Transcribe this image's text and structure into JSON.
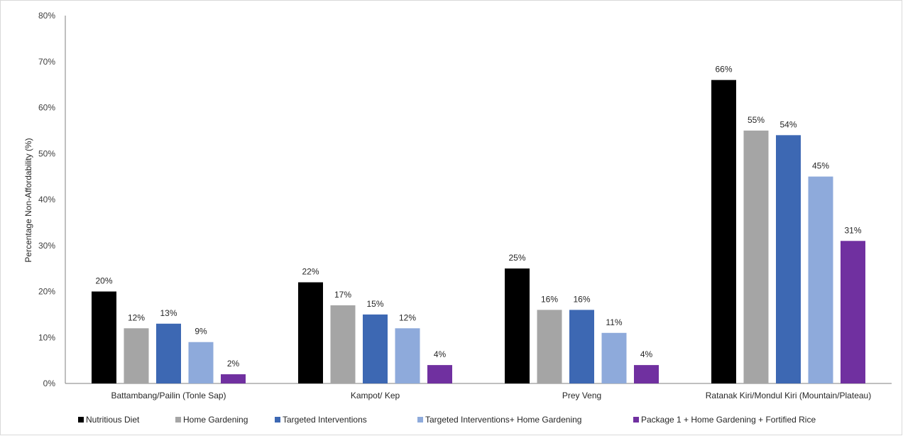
{
  "chart_data": {
    "type": "bar",
    "title": "",
    "xlabel": "",
    "ylabel": "Percentage Non-Affordability (%)",
    "ylim": [
      0,
      80
    ],
    "yticks": [
      "0%",
      "10%",
      "20%",
      "30%",
      "40%",
      "50%",
      "60%",
      "70%",
      "80%"
    ],
    "grid": false,
    "legend_position": "bottom",
    "categories": [
      "Battambang/Pailin (Tonle Sap)",
      "Kampot/ Kep",
      "Prey Veng",
      "Ratanak Kiri/Mondul Kiri (Mountain/Plateau)"
    ],
    "series": [
      {
        "name": "Nutritious Diet",
        "color": "#000000",
        "values": [
          20,
          22,
          25,
          66
        ],
        "labels": [
          "20%",
          "22%",
          "25%",
          "66%"
        ]
      },
      {
        "name": "Home Gardening",
        "color": "#a5a5a5",
        "values": [
          12,
          17,
          16,
          55
        ],
        "labels": [
          "12%",
          "17%",
          "16%",
          "55%"
        ]
      },
      {
        "name": "Targeted Interventions",
        "color": "#3d68b3",
        "values": [
          13,
          15,
          16,
          54
        ],
        "labels": [
          "13%",
          "15%",
          "16%",
          "54%"
        ]
      },
      {
        "name": "Targeted Interventions+ Home Gardening",
        "color": "#8eaadb",
        "values": [
          9,
          12,
          11,
          45
        ],
        "labels": [
          "9%",
          "12%",
          "11%",
          "45%"
        ]
      },
      {
        "name": "Package 1 + Home Gardening + Fortified Rice",
        "color": "#7030a0",
        "values": [
          2,
          4,
          4,
          31
        ],
        "labels": [
          "2%",
          "4%",
          "4%",
          "31%"
        ]
      }
    ]
  }
}
